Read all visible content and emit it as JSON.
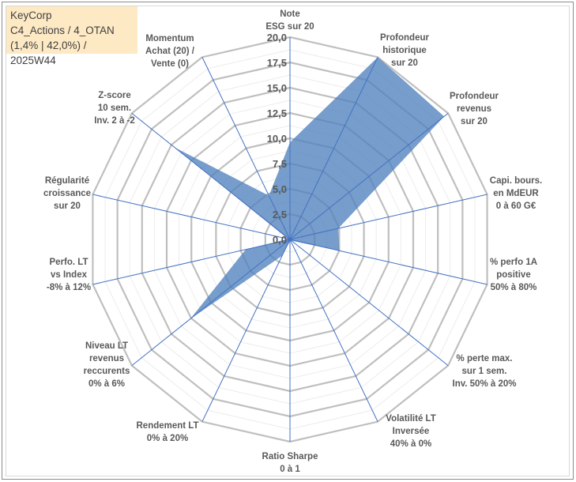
{
  "info": {
    "company": "KeyCorp",
    "portfolio": "C4_Actions / 4_OTAN",
    "stats": "(1,4% | 42,0%) / 2025W44"
  },
  "chart_data": {
    "type": "radar",
    "title": "",
    "rmin": 0,
    "rmax": 20,
    "rticks": [
      "0,0",
      "2,5",
      "5,0",
      "7,5",
      "10,0",
      "12,5",
      "15,0",
      "17,5",
      "20,0"
    ],
    "rtick_values": [
      0,
      2.5,
      5,
      7.5,
      10,
      12.5,
      15,
      17.5,
      20
    ],
    "grid": true,
    "categories": [
      "Note\nESG sur 20",
      "Profondeur\nhistorique\nsur 20",
      "Profondeur\nrevenus\nsur 20",
      "Capi. bours.\nen MdEUR\n0 à 60 G€",
      "% perfo 1A\npositive\n50% à 80%",
      "% perte max.\nsur 1 sem.\nInv. 50% à 20%",
      "Volatilité LT\nInversée\n40% à 0%",
      "Ratio Sharpe\n0 à 1",
      "Rendement LT\n0% à 20%",
      "Niveau LT\nrevenus\nreccurents\n0% à 6%",
      "Perfo. LT\nvs Index\n-8% à 12%",
      "Régularité\ncroissance\nsur 20",
      "Z-score\n10 sem.\nInv. 2 à -2",
      "Momentum\nAchat (20) /\nVente (0)"
    ],
    "series": [
      {
        "name": "KeyCorp",
        "values": [
          9.6,
          20,
          19.5,
          4.9,
          5.0,
          0.2,
          0.2,
          0.2,
          1.8,
          12.6,
          4.5,
          0.2,
          14.6,
          4.8
        ],
        "color": "#4f81bd"
      }
    ],
    "axis_color": "#4472c4",
    "grid_color": "#bfbfbf"
  }
}
